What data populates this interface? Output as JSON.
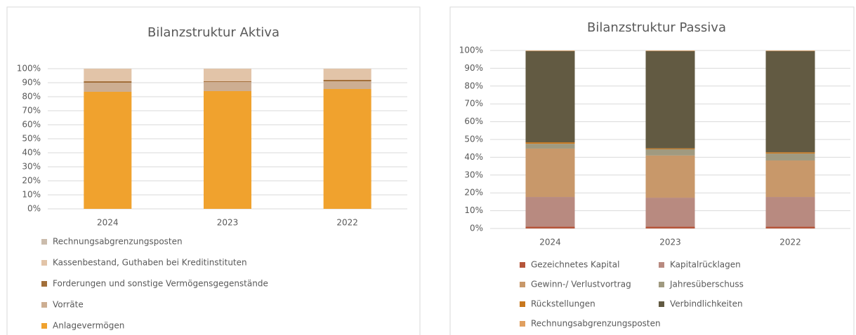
{
  "chart_data": [
    {
      "type": "bar",
      "stacked": true,
      "title": "Bilanzstruktur Aktiva",
      "categories": [
        "2024",
        "2023",
        "2022"
      ],
      "series": [
        {
          "name": "Anlagevermögen",
          "color": "#f0a22e",
          "values": [
            83.5,
            84,
            85.5
          ]
        },
        {
          "name": "Vorräte",
          "color": "#cdae92",
          "values": [
            6.5,
            6.5,
            5.5
          ]
        },
        {
          "name": "Forderungen und sonstige Vermögensgegenstände",
          "color": "#a26f3a",
          "values": [
            1,
            0.5,
            1
          ]
        },
        {
          "name": "Kassenbestand, Guthaben bei Kreditinstituten",
          "color": "#e2c4a8",
          "values": [
            9,
            9,
            8
          ]
        },
        {
          "name": "Rechnungsabgrenzungsposten",
          "color": "#cbbcac",
          "values": [
            0,
            0,
            0
          ]
        }
      ],
      "ylim": [
        0,
        100
      ],
      "yticks": [
        {
          "value": 0,
          "label": "0%"
        },
        {
          "value": 10,
          "label": "10%"
        },
        {
          "value": 20,
          "label": "20%"
        },
        {
          "value": 30,
          "label": "30%"
        },
        {
          "value": 40,
          "label": "40%"
        },
        {
          "value": 50,
          "label": "50%"
        },
        {
          "value": 60,
          "label": "60%"
        },
        {
          "value": 70,
          "label": "70%"
        },
        {
          "value": 80,
          "label": "80%"
        },
        {
          "value": 90,
          "label": "90%"
        },
        {
          "value": 100,
          "label": "100%"
        }
      ],
      "grid": true,
      "legend": "bottom"
    },
    {
      "type": "bar",
      "stacked": true,
      "title": "Bilanzstruktur Passiva",
      "categories": [
        "2024",
        "2023",
        "2022"
      ],
      "series": [
        {
          "name": "Gezeichnetes Kapital",
          "color": "#b5553a",
          "values": [
            1,
            1,
            1
          ]
        },
        {
          "name": "Kapitalrücklagen",
          "color": "#b88a80",
          "values": [
            16.7,
            16.3,
            16.7
          ]
        },
        {
          "name": "Gewinn-/ Verlustvortrag",
          "color": "#c8986a",
          "values": [
            27.2,
            23.7,
            20.5
          ]
        },
        {
          "name": "Jahresüberschuss",
          "color": "#a09a80",
          "values": [
            2.7,
            3.5,
            3.9
          ]
        },
        {
          "name": "Rückstellungen",
          "color": "#c8781e",
          "values": [
            0.8,
            0.5,
            0.7
          ]
        },
        {
          "name": "Verbindlichkeiten",
          "color": "#625a42",
          "values": [
            51.3,
            54.7,
            56.9
          ]
        },
        {
          "name": "Rechnungsabgrenzungsposten",
          "color": "#e0a060",
          "values": [
            0.3,
            0.3,
            0.3
          ]
        }
      ],
      "ylim": [
        0,
        100
      ],
      "yticks": [
        {
          "value": 0,
          "label": "0%"
        },
        {
          "value": 10,
          "label": "10%"
        },
        {
          "value": 20,
          "label": "20%"
        },
        {
          "value": 30,
          "label": "30%"
        },
        {
          "value": 40,
          "label": "40%"
        },
        {
          "value": 50,
          "label": "50%"
        },
        {
          "value": 60,
          "label": "60%"
        },
        {
          "value": 70,
          "label": "70%"
        },
        {
          "value": 80,
          "label": "80%"
        },
        {
          "value": 90,
          "label": "90%"
        },
        {
          "value": 100,
          "label": "100%"
        }
      ],
      "grid": true,
      "legend": "bottom"
    }
  ]
}
